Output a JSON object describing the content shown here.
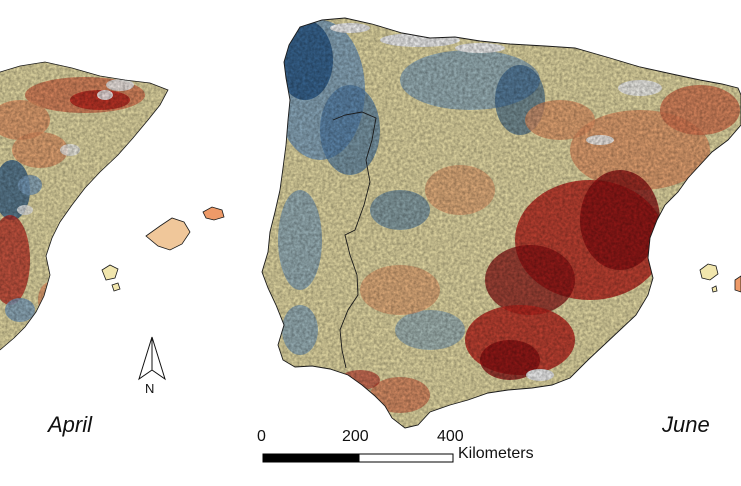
{
  "panels": [
    {
      "label": "April"
    },
    {
      "label": "June"
    }
  ],
  "north_arrow": {
    "letter": "N"
  },
  "scale_bar": {
    "ticks": [
      "0",
      "200",
      "400"
    ],
    "unit": "Kilometers"
  },
  "colors": {
    "strong_negative": "#2c5d8f",
    "negative": "#7fa6c8",
    "neutral": "#f1e6ad",
    "positive": "#ee9a68",
    "strong_positive": "#c1271f",
    "extreme_positive": "#8e0f12",
    "no_data": "#ffffff",
    "border": "#1a1a1a"
  },
  "icons": {
    "north_arrow": "north-arrow-icon",
    "scale_bar": "scale-bar-icon"
  }
}
